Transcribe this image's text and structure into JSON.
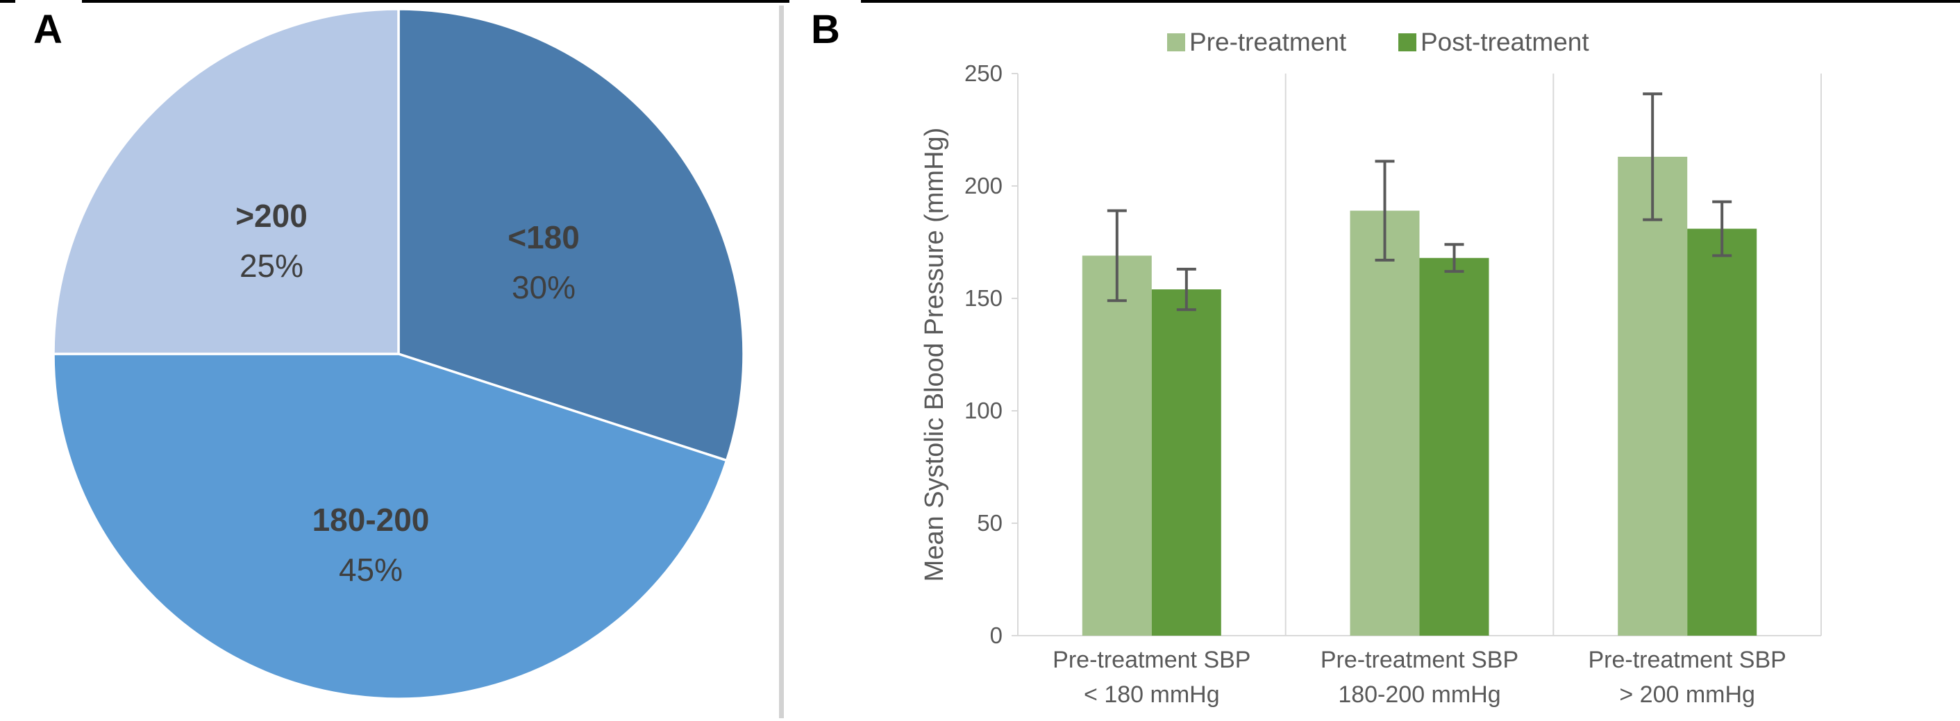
{
  "panels": {
    "a_label": "A",
    "b_label": "B"
  },
  "chart_data": [
    {
      "type": "pie",
      "panel": "A",
      "slices": [
        {
          "label": "<180",
          "pct": 30,
          "pct_label": "30%",
          "color": "#4A7BAC"
        },
        {
          "label": "180-200",
          "pct": 45,
          "pct_label": "45%",
          "color": "#5B9BD5"
        },
        {
          "label": ">200",
          "pct": 25,
          "pct_label": "25%",
          "color": "#B5C8E6"
        }
      ],
      "start_angle_deg": 0,
      "direction": "clockwise",
      "slice_border_color": "#FFFFFF",
      "label_color": "#3F3F3F"
    },
    {
      "type": "bar",
      "panel": "B",
      "categories": [
        "Pre-treatment SBP\n< 180 mmHg",
        "Pre-treatment SBP\n180-200 mmHg",
        "Pre-treatment SBP\n> 200 mmHg"
      ],
      "series": [
        {
          "name": "Pre-treatment",
          "color": "#A4C28D",
          "values": [
            169,
            189,
            213
          ],
          "errors": [
            20,
            22,
            28
          ]
        },
        {
          "name": "Post-treatment",
          "color": "#609A3C",
          "values": [
            154,
            168,
            181
          ],
          "errors": [
            9,
            6,
            12
          ]
        }
      ],
      "ylabel": "Mean Systolic Blood Pressure (mmHg)",
      "ylim": [
        0,
        250
      ],
      "yticks": [
        0,
        50,
        100,
        150,
        200,
        250
      ],
      "legend_position": "top-center",
      "error_bars": true,
      "grid": "vertical category separators",
      "axis_color": "#D9D9D9",
      "text_color": "#595959",
      "error_bar_color": "#595959"
    }
  ]
}
